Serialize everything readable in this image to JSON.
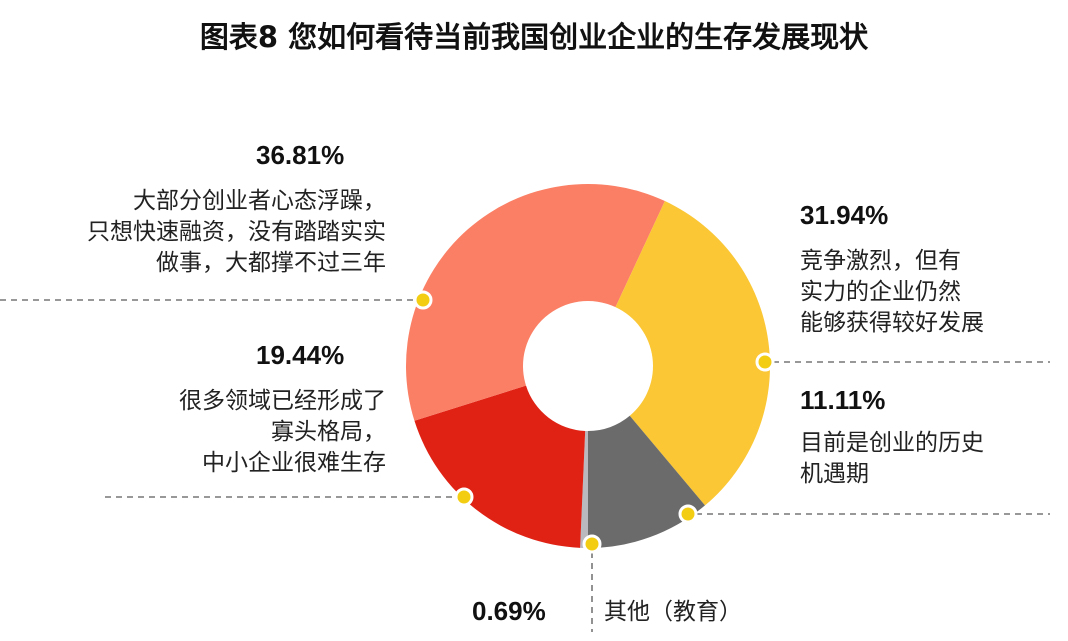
{
  "chart_data": {
    "type": "pie",
    "variant": "donut",
    "title": "图表8  您如何看待当前我国创业企业的生存发展现状",
    "slices": [
      {
        "id": "other",
        "pct_label": "0.69%",
        "value": 0.69,
        "label": "其他（教育）",
        "color": "#b9b9be"
      },
      {
        "id": "hard",
        "pct_label": "19.44%",
        "value": 19.44,
        "label": "很多领域已经形成了\n寡头格局，\n中小企业很难生存",
        "color": "#e02215"
      },
      {
        "id": "impetuous",
        "pct_label": "36.81%",
        "value": 36.81,
        "label": "大部分创业者心态浮躁，\n只想快速融资，没有踏踏实实\n做事，大都撑不过三年",
        "color": "#fb7f64"
      },
      {
        "id": "competition",
        "pct_label": "31.94%",
        "value": 31.94,
        "label": "竞争激烈，但有\n实力的企业仍然\n能够获得较好发展",
        "color": "#fbc735"
      },
      {
        "id": "opportunity",
        "pct_label": "11.11%",
        "value": 11.11,
        "label": "目前是创业的历史\n机遇期",
        "color": "#6b6b6b"
      }
    ],
    "start_angle_deg": 180,
    "direction": "clockwise",
    "marker_color": "#f3cd12"
  }
}
